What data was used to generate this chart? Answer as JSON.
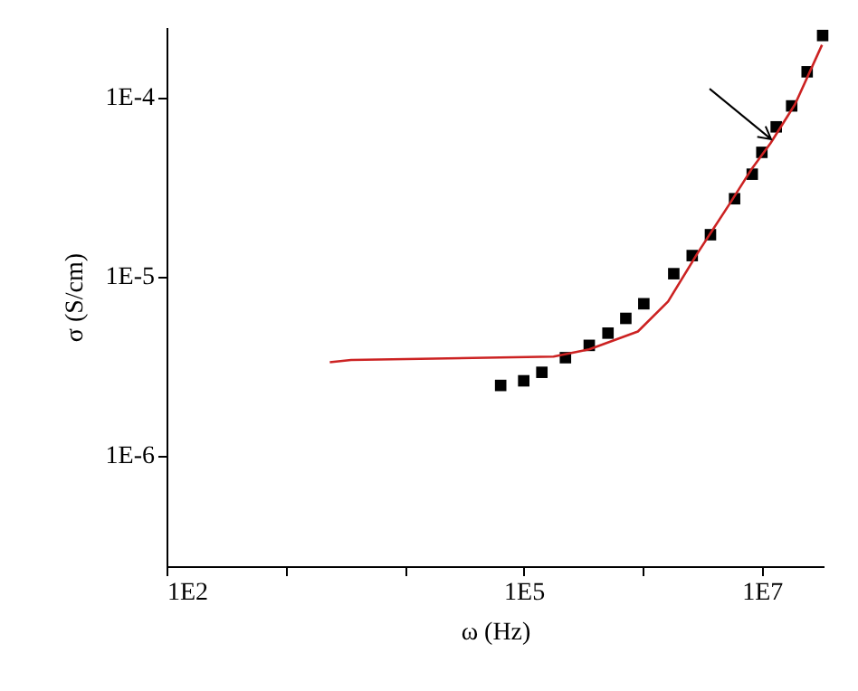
{
  "chart_data": {
    "type": "scatter",
    "xlabel": "ω (Hz)",
    "ylabel": "σ (S/cm)",
    "log": "xy",
    "grid": false,
    "xlim": [
      100,
      33000000
    ],
    "ylim": [
      2.4e-07,
      0.000245
    ],
    "xticks": [
      {
        "value": 100,
        "label": "1E2"
      },
      {
        "value": 1000,
        "label": null
      },
      {
        "value": 10000,
        "label": null
      },
      {
        "value": 100000,
        "label": "1E5"
      },
      {
        "value": 1000000,
        "label": null
      },
      {
        "value": 10000000,
        "label": "1E7"
      }
    ],
    "yticks": [
      {
        "value": 1e-06,
        "label": "1E-6"
      },
      {
        "value": 1e-05,
        "label": "1E-5"
      },
      {
        "value": 0.0001,
        "label": "1E-4"
      }
    ],
    "series": [
      {
        "marker": "square",
        "color": "#000000",
        "x": [
          64000,
          100000,
          142000,
          224000,
          355000,
          510000,
          720000,
          1020000,
          1820000,
          2600000,
          3700000,
          5900000,
          8300000,
          10000000,
          13200000,
          17800000,
          24000000,
          32400000
        ],
        "values": [
          2.45e-06,
          2.6e-06,
          2.9e-06,
          3.5e-06,
          4.1e-06,
          4.8e-06,
          5.8e-06,
          7e-06,
          1.03e-05,
          1.3e-05,
          1.7e-05,
          2.7e-05,
          3.7e-05,
          4.9e-05,
          6.8e-05,
          8.9e-05,
          0.000138,
          0.00022
        ]
      },
      {
        "type": "line",
        "marker": "none",
        "line_style": "solid",
        "color": "#cc2222",
        "x": [
          2350,
          3550,
          178000,
          355000,
          910000,
          1630000,
          2900000,
          5300000,
          8300000,
          11800000,
          19000000,
          32000000
        ],
        "values": [
          3.3e-06,
          3.4e-06,
          3.55e-06,
          3.9e-06,
          4.9e-06,
          7.2e-06,
          1.35e-05,
          2.5e-05,
          4e-05,
          5.5e-05,
          9.1e-05,
          0.000195
        ]
      }
    ]
  }
}
